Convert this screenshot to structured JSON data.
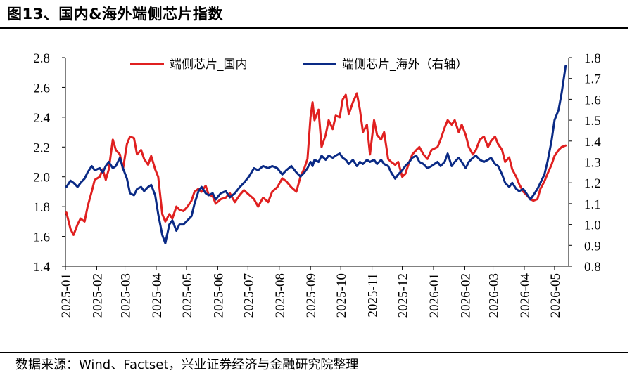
{
  "header": {
    "figure_title": "图13、国内&海外端侧芯片指数"
  },
  "footer": {
    "source": "数据来源：Wind、Factset，兴业证券经济与金融研究院整理"
  },
  "colors": {
    "domestic": "#e02020",
    "overseas": "#0a2a85",
    "axis": "#000000"
  },
  "chart_data": {
    "type": "line",
    "title": "",
    "legend_placement": "top",
    "grid": false,
    "x_ticks": [
      "2025-01",
      "2025-02",
      "2025-03",
      "2025-04",
      "2025-05",
      "2025-06",
      "2025-07",
      "2025-08",
      "2025-09",
      "2025-10",
      "2025-11",
      "2025-12",
      "2026-01",
      "2026-02",
      "2026-03",
      "2026-04",
      "2026-05"
    ],
    "y_left": {
      "ylim": [
        1.4,
        2.8
      ],
      "ticks": [
        "1.4",
        "1.6",
        "1.8",
        "2.0",
        "2.2",
        "2.4",
        "2.6",
        "2.8"
      ]
    },
    "y_right": {
      "ylim": [
        0.8,
        1.8
      ],
      "ticks": [
        "0.8",
        "0.9",
        "1.0",
        "1.1",
        "1.2",
        "1.3",
        "1.4",
        "1.5",
        "1.6",
        "1.7",
        "1.8"
      ]
    },
    "series": [
      {
        "name": "端侧芯片_国内",
        "axis": "left",
        "points": [
          [
            "2025-01-02",
            1.76
          ],
          [
            "2025-01-06",
            1.65
          ],
          [
            "2025-01-09",
            1.61
          ],
          [
            "2025-01-13",
            1.68
          ],
          [
            "2025-01-16",
            1.72
          ],
          [
            "2025-01-20",
            1.7
          ],
          [
            "2025-01-23",
            1.8
          ],
          [
            "2025-01-27",
            1.9
          ],
          [
            "2025-01-30",
            1.98
          ],
          [
            "2025-02-04",
            2.0
          ],
          [
            "2025-02-07",
            2.05
          ],
          [
            "2025-02-10",
            1.98
          ],
          [
            "2025-02-13",
            2.05
          ],
          [
            "2025-02-17",
            2.25
          ],
          [
            "2025-02-20",
            2.18
          ],
          [
            "2025-02-24",
            2.15
          ],
          [
            "2025-02-27",
            2.05
          ],
          [
            "2025-03-03",
            2.22
          ],
          [
            "2025-03-06",
            2.27
          ],
          [
            "2025-03-10",
            2.26
          ],
          [
            "2025-03-13",
            2.15
          ],
          [
            "2025-03-17",
            2.18
          ],
          [
            "2025-03-20",
            2.12
          ],
          [
            "2025-03-24",
            2.08
          ],
          [
            "2025-03-27",
            2.14
          ],
          [
            "2025-03-31",
            2.05
          ],
          [
            "2025-04-03",
            2.0
          ],
          [
            "2025-04-07",
            1.75
          ],
          [
            "2025-04-10",
            1.7
          ],
          [
            "2025-04-14",
            1.75
          ],
          [
            "2025-04-17",
            1.72
          ],
          [
            "2025-04-21",
            1.8
          ],
          [
            "2025-04-24",
            1.78
          ],
          [
            "2025-04-28",
            1.77
          ],
          [
            "2025-05-02",
            1.8
          ],
          [
            "2025-05-06",
            1.84
          ],
          [
            "2025-05-09",
            1.9
          ],
          [
            "2025-05-13",
            1.92
          ],
          [
            "2025-05-16",
            1.9
          ],
          [
            "2025-05-20",
            1.94
          ],
          [
            "2025-05-23",
            1.88
          ],
          [
            "2025-05-27",
            1.87
          ],
          [
            "2025-05-30",
            1.82
          ],
          [
            "2025-06-04",
            1.85
          ],
          [
            "2025-06-09",
            1.86
          ],
          [
            "2025-06-13",
            1.89
          ],
          [
            "2025-06-18",
            1.83
          ],
          [
            "2025-06-23",
            1.88
          ],
          [
            "2025-06-27",
            1.91
          ],
          [
            "2025-07-02",
            1.88
          ],
          [
            "2025-07-07",
            1.85
          ],
          [
            "2025-07-11",
            1.8
          ],
          [
            "2025-07-16",
            1.86
          ],
          [
            "2025-07-21",
            1.83
          ],
          [
            "2025-07-25",
            1.9
          ],
          [
            "2025-07-30",
            1.93
          ],
          [
            "2025-08-04",
            1.99
          ],
          [
            "2025-08-08",
            1.97
          ],
          [
            "2025-08-13",
            1.93
          ],
          [
            "2025-08-18",
            1.9
          ],
          [
            "2025-08-22",
            2.0
          ],
          [
            "2025-08-26",
            2.06
          ],
          [
            "2025-08-29",
            2.12
          ],
          [
            "2025-09-01",
            2.4
          ],
          [
            "2025-09-03",
            2.5
          ],
          [
            "2025-09-05",
            2.38
          ],
          [
            "2025-09-09",
            2.45
          ],
          [
            "2025-09-12",
            2.2
          ],
          [
            "2025-09-16",
            2.28
          ],
          [
            "2025-09-19",
            2.38
          ],
          [
            "2025-09-23",
            2.32
          ],
          [
            "2025-09-26",
            2.41
          ],
          [
            "2025-09-30",
            2.4
          ],
          [
            "2025-10-03",
            2.52
          ],
          [
            "2025-10-06",
            2.55
          ],
          [
            "2025-10-09",
            2.42
          ],
          [
            "2025-10-13",
            2.5
          ],
          [
            "2025-10-17",
            2.56
          ],
          [
            "2025-10-20",
            2.45
          ],
          [
            "2025-10-23",
            2.3
          ],
          [
            "2025-10-27",
            2.35
          ],
          [
            "2025-10-30",
            2.15
          ],
          [
            "2025-11-03",
            2.38
          ],
          [
            "2025-11-06",
            2.28
          ],
          [
            "2025-11-10",
            2.25
          ],
          [
            "2025-11-13",
            2.3
          ],
          [
            "2025-11-17",
            2.12
          ],
          [
            "2025-11-20",
            2.1
          ],
          [
            "2025-11-24",
            2.08
          ],
          [
            "2025-11-27",
            2.1
          ],
          [
            "2025-12-01",
            2.0
          ],
          [
            "2025-12-04",
            2.02
          ],
          [
            "2025-12-08",
            2.1
          ],
          [
            "2025-12-11",
            2.15
          ],
          [
            "2025-12-15",
            2.18
          ],
          [
            "2025-12-18",
            2.2
          ],
          [
            "2025-12-22",
            2.15
          ],
          [
            "2025-12-26",
            2.12
          ],
          [
            "2025-12-30",
            2.18
          ],
          [
            "2026-01-05",
            2.2
          ],
          [
            "2026-01-08",
            2.25
          ],
          [
            "2026-01-12",
            2.33
          ],
          [
            "2026-01-15",
            2.38
          ],
          [
            "2026-01-19",
            2.35
          ],
          [
            "2026-01-22",
            2.38
          ],
          [
            "2026-01-26",
            2.3
          ],
          [
            "2026-01-29",
            2.35
          ],
          [
            "2026-02-02",
            2.28
          ],
          [
            "2026-02-05",
            2.2
          ],
          [
            "2026-02-09",
            2.15
          ],
          [
            "2026-02-12",
            2.18
          ],
          [
            "2026-02-16",
            2.25
          ],
          [
            "2026-02-20",
            2.27
          ],
          [
            "2026-02-24",
            2.2
          ],
          [
            "2026-02-27",
            2.24
          ],
          [
            "2026-03-03",
            2.27
          ],
          [
            "2026-03-06",
            2.22
          ],
          [
            "2026-03-10",
            2.18
          ],
          [
            "2026-03-13",
            2.1
          ],
          [
            "2026-03-17",
            2.13
          ],
          [
            "2026-03-20",
            2.05
          ],
          [
            "2026-03-24",
            2.0
          ],
          [
            "2026-03-27",
            1.95
          ],
          [
            "2026-03-31",
            1.9
          ],
          [
            "2026-04-03",
            1.88
          ],
          [
            "2026-04-07",
            1.85
          ],
          [
            "2026-04-10",
            1.84
          ],
          [
            "2026-04-14",
            1.85
          ],
          [
            "2026-04-17",
            1.92
          ],
          [
            "2026-04-21",
            1.97
          ],
          [
            "2026-04-24",
            2.02
          ],
          [
            "2026-04-28",
            2.08
          ],
          [
            "2026-05-01",
            2.14
          ],
          [
            "2026-05-05",
            2.18
          ],
          [
            "2026-05-08",
            2.2
          ],
          [
            "2026-05-12",
            2.21
          ]
        ]
      },
      {
        "name": "端侧芯片_海外（右轴）",
        "axis": "right",
        "points": [
          [
            "2025-01-02",
            1.18
          ],
          [
            "2025-01-06",
            1.21
          ],
          [
            "2025-01-09",
            1.2
          ],
          [
            "2025-01-13",
            1.18
          ],
          [
            "2025-01-16",
            1.2
          ],
          [
            "2025-01-20",
            1.22
          ],
          [
            "2025-01-23",
            1.25
          ],
          [
            "2025-01-27",
            1.28
          ],
          [
            "2025-01-30",
            1.26
          ],
          [
            "2025-02-04",
            1.27
          ],
          [
            "2025-02-07",
            1.25
          ],
          [
            "2025-02-10",
            1.28
          ],
          [
            "2025-02-13",
            1.3
          ],
          [
            "2025-02-17",
            1.27
          ],
          [
            "2025-02-20",
            1.28
          ],
          [
            "2025-02-24",
            1.32
          ],
          [
            "2025-02-27",
            1.27
          ],
          [
            "2025-03-03",
            1.22
          ],
          [
            "2025-03-06",
            1.15
          ],
          [
            "2025-03-10",
            1.14
          ],
          [
            "2025-03-13",
            1.17
          ],
          [
            "2025-03-17",
            1.18
          ],
          [
            "2025-03-20",
            1.16
          ],
          [
            "2025-03-24",
            1.18
          ],
          [
            "2025-03-27",
            1.19
          ],
          [
            "2025-03-31",
            1.14
          ],
          [
            "2025-04-03",
            1.05
          ],
          [
            "2025-04-07",
            0.95
          ],
          [
            "2025-04-10",
            0.91
          ],
          [
            "2025-04-14",
            1.0
          ],
          [
            "2025-04-17",
            1.02
          ],
          [
            "2025-04-21",
            0.97
          ],
          [
            "2025-04-24",
            1.0
          ],
          [
            "2025-04-28",
            1.0
          ],
          [
            "2025-05-02",
            1.02
          ],
          [
            "2025-05-06",
            1.04
          ],
          [
            "2025-05-09",
            1.1
          ],
          [
            "2025-05-13",
            1.16
          ],
          [
            "2025-05-16",
            1.18
          ],
          [
            "2025-05-20",
            1.15
          ],
          [
            "2025-05-23",
            1.14
          ],
          [
            "2025-05-27",
            1.15
          ],
          [
            "2025-05-30",
            1.12
          ],
          [
            "2025-06-04",
            1.15
          ],
          [
            "2025-06-09",
            1.16
          ],
          [
            "2025-06-13",
            1.13
          ],
          [
            "2025-06-18",
            1.15
          ],
          [
            "2025-06-23",
            1.18
          ],
          [
            "2025-06-27",
            1.2
          ],
          [
            "2025-07-02",
            1.23
          ],
          [
            "2025-07-07",
            1.27
          ],
          [
            "2025-07-11",
            1.26
          ],
          [
            "2025-07-16",
            1.28
          ],
          [
            "2025-07-21",
            1.27
          ],
          [
            "2025-07-25",
            1.28
          ],
          [
            "2025-07-30",
            1.27
          ],
          [
            "2025-08-04",
            1.24
          ],
          [
            "2025-08-08",
            1.26
          ],
          [
            "2025-08-13",
            1.28
          ],
          [
            "2025-08-18",
            1.25
          ],
          [
            "2025-08-22",
            1.23
          ],
          [
            "2025-08-26",
            1.25
          ],
          [
            "2025-08-29",
            1.27
          ],
          [
            "2025-09-01",
            1.3
          ],
          [
            "2025-09-03",
            1.28
          ],
          [
            "2025-09-05",
            1.31
          ],
          [
            "2025-09-09",
            1.3
          ],
          [
            "2025-09-12",
            1.33
          ],
          [
            "2025-09-16",
            1.31
          ],
          [
            "2025-09-19",
            1.33
          ],
          [
            "2025-09-23",
            1.32
          ],
          [
            "2025-09-26",
            1.33
          ],
          [
            "2025-09-30",
            1.34
          ],
          [
            "2025-10-03",
            1.32
          ],
          [
            "2025-10-06",
            1.31
          ],
          [
            "2025-10-09",
            1.29
          ],
          [
            "2025-10-13",
            1.31
          ],
          [
            "2025-10-17",
            1.28
          ],
          [
            "2025-10-20",
            1.3
          ],
          [
            "2025-10-23",
            1.29
          ],
          [
            "2025-10-27",
            1.31
          ],
          [
            "2025-10-30",
            1.3
          ],
          [
            "2025-11-03",
            1.31
          ],
          [
            "2025-11-06",
            1.29
          ],
          [
            "2025-11-10",
            1.31
          ],
          [
            "2025-11-13",
            1.29
          ],
          [
            "2025-11-17",
            1.28
          ],
          [
            "2025-11-20",
            1.25
          ],
          [
            "2025-11-24",
            1.22
          ],
          [
            "2025-11-27",
            1.24
          ],
          [
            "2025-12-01",
            1.26
          ],
          [
            "2025-12-04",
            1.28
          ],
          [
            "2025-12-08",
            1.3
          ],
          [
            "2025-12-11",
            1.32
          ],
          [
            "2025-12-15",
            1.33
          ],
          [
            "2025-12-18",
            1.3
          ],
          [
            "2025-12-22",
            1.29
          ],
          [
            "2025-12-26",
            1.27
          ],
          [
            "2025-12-30",
            1.28
          ],
          [
            "2026-01-05",
            1.3
          ],
          [
            "2026-01-08",
            1.28
          ],
          [
            "2026-01-12",
            1.3
          ],
          [
            "2026-01-15",
            1.34
          ],
          [
            "2026-01-19",
            1.28
          ],
          [
            "2026-01-22",
            1.3
          ],
          [
            "2026-01-26",
            1.32
          ],
          [
            "2026-01-29",
            1.3
          ],
          [
            "2026-02-02",
            1.27
          ],
          [
            "2026-02-05",
            1.3
          ],
          [
            "2026-02-09",
            1.32
          ],
          [
            "2026-02-12",
            1.33
          ],
          [
            "2026-02-16",
            1.31
          ],
          [
            "2026-02-20",
            1.3
          ],
          [
            "2026-02-24",
            1.31
          ],
          [
            "2026-02-27",
            1.32
          ],
          [
            "2026-03-03",
            1.29
          ],
          [
            "2026-03-06",
            1.28
          ],
          [
            "2026-03-10",
            1.24
          ],
          [
            "2026-03-13",
            1.2
          ],
          [
            "2026-03-17",
            1.18
          ],
          [
            "2026-03-20",
            1.2
          ],
          [
            "2026-03-24",
            1.17
          ],
          [
            "2026-03-27",
            1.16
          ],
          [
            "2026-03-31",
            1.17
          ],
          [
            "2026-04-03",
            1.15
          ],
          [
            "2026-04-07",
            1.12
          ],
          [
            "2026-04-10",
            1.14
          ],
          [
            "2026-04-14",
            1.17
          ],
          [
            "2026-04-17",
            1.2
          ],
          [
            "2026-04-21",
            1.24
          ],
          [
            "2026-04-24",
            1.3
          ],
          [
            "2026-04-28",
            1.4
          ],
          [
            "2026-05-01",
            1.5
          ],
          [
            "2026-05-05",
            1.55
          ],
          [
            "2026-05-08",
            1.63
          ],
          [
            "2026-05-12",
            1.76
          ]
        ]
      }
    ]
  }
}
